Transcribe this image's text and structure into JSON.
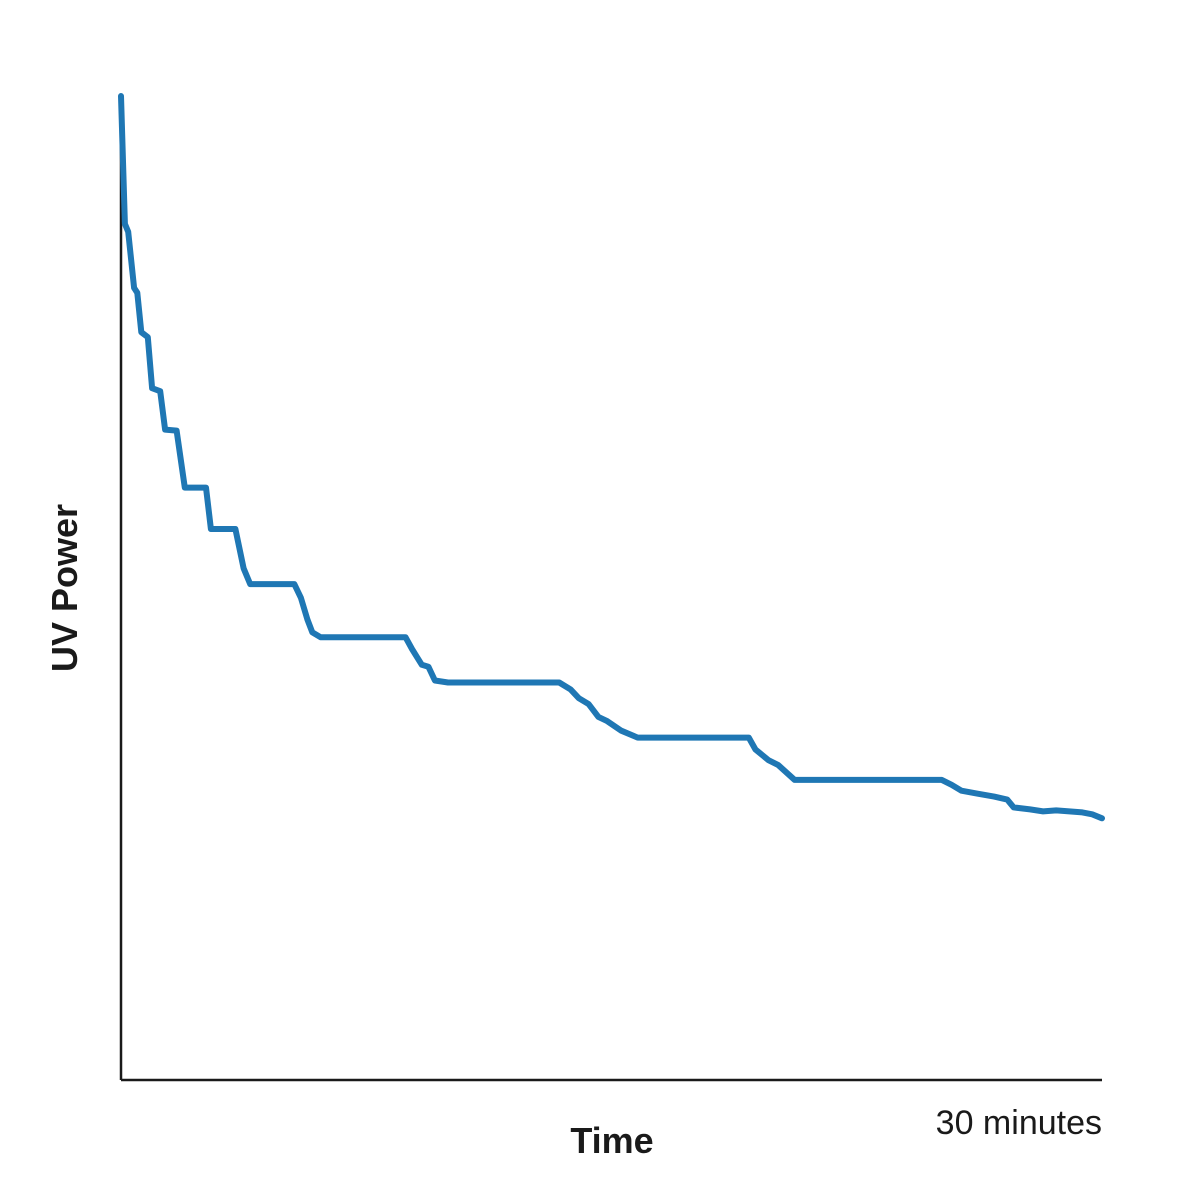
{
  "chart_data": {
    "type": "line",
    "xlabel": "Time",
    "ylabel": "UV Power",
    "x_tick_end_label": "30 minutes",
    "xlim": [
      0,
      30
    ],
    "ylim": [
      0,
      100
    ],
    "grid": false,
    "legend": "none",
    "colors": {
      "series": "#1f77b4",
      "axis": "#1a1a1a"
    },
    "series": [
      {
        "values": [
          [
            0.0,
            100.0
          ],
          [
            0.12,
            87.0
          ],
          [
            0.22,
            86.2
          ],
          [
            0.4,
            80.5
          ],
          [
            0.5,
            80.0
          ],
          [
            0.62,
            76.0
          ],
          [
            0.82,
            75.5
          ],
          [
            0.95,
            70.3
          ],
          [
            1.2,
            70.0
          ],
          [
            1.35,
            66.1
          ],
          [
            1.7,
            66.0
          ],
          [
            1.95,
            60.2
          ],
          [
            2.6,
            60.2
          ],
          [
            2.75,
            56.0
          ],
          [
            3.5,
            56.0
          ],
          [
            3.75,
            52.0
          ],
          [
            3.95,
            50.4
          ],
          [
            5.3,
            50.4
          ],
          [
            5.5,
            49.0
          ],
          [
            5.7,
            46.8
          ],
          [
            5.85,
            45.5
          ],
          [
            6.1,
            45.0
          ],
          [
            8.7,
            45.0
          ],
          [
            8.9,
            43.8
          ],
          [
            9.05,
            43.0
          ],
          [
            9.2,
            42.2
          ],
          [
            9.4,
            42.0
          ],
          [
            9.6,
            40.6
          ],
          [
            10.0,
            40.4
          ],
          [
            13.4,
            40.4
          ],
          [
            13.75,
            39.7
          ],
          [
            14.0,
            38.8
          ],
          [
            14.3,
            38.2
          ],
          [
            14.6,
            36.9
          ],
          [
            14.85,
            36.5
          ],
          [
            15.3,
            35.5
          ],
          [
            15.8,
            34.8
          ],
          [
            19.2,
            34.8
          ],
          [
            19.4,
            33.6
          ],
          [
            19.8,
            32.5
          ],
          [
            20.1,
            32.0
          ],
          [
            20.6,
            30.5
          ],
          [
            25.1,
            30.5
          ],
          [
            25.4,
            30.0
          ],
          [
            25.7,
            29.4
          ],
          [
            26.2,
            29.1
          ],
          [
            26.7,
            28.8
          ],
          [
            27.1,
            28.5
          ],
          [
            27.3,
            27.7
          ],
          [
            27.8,
            27.5
          ],
          [
            28.2,
            27.3
          ],
          [
            28.6,
            27.4
          ],
          [
            29.0,
            27.3
          ],
          [
            29.4,
            27.2
          ],
          [
            29.7,
            27.0
          ],
          [
            30.0,
            26.6
          ]
        ]
      }
    ]
  }
}
